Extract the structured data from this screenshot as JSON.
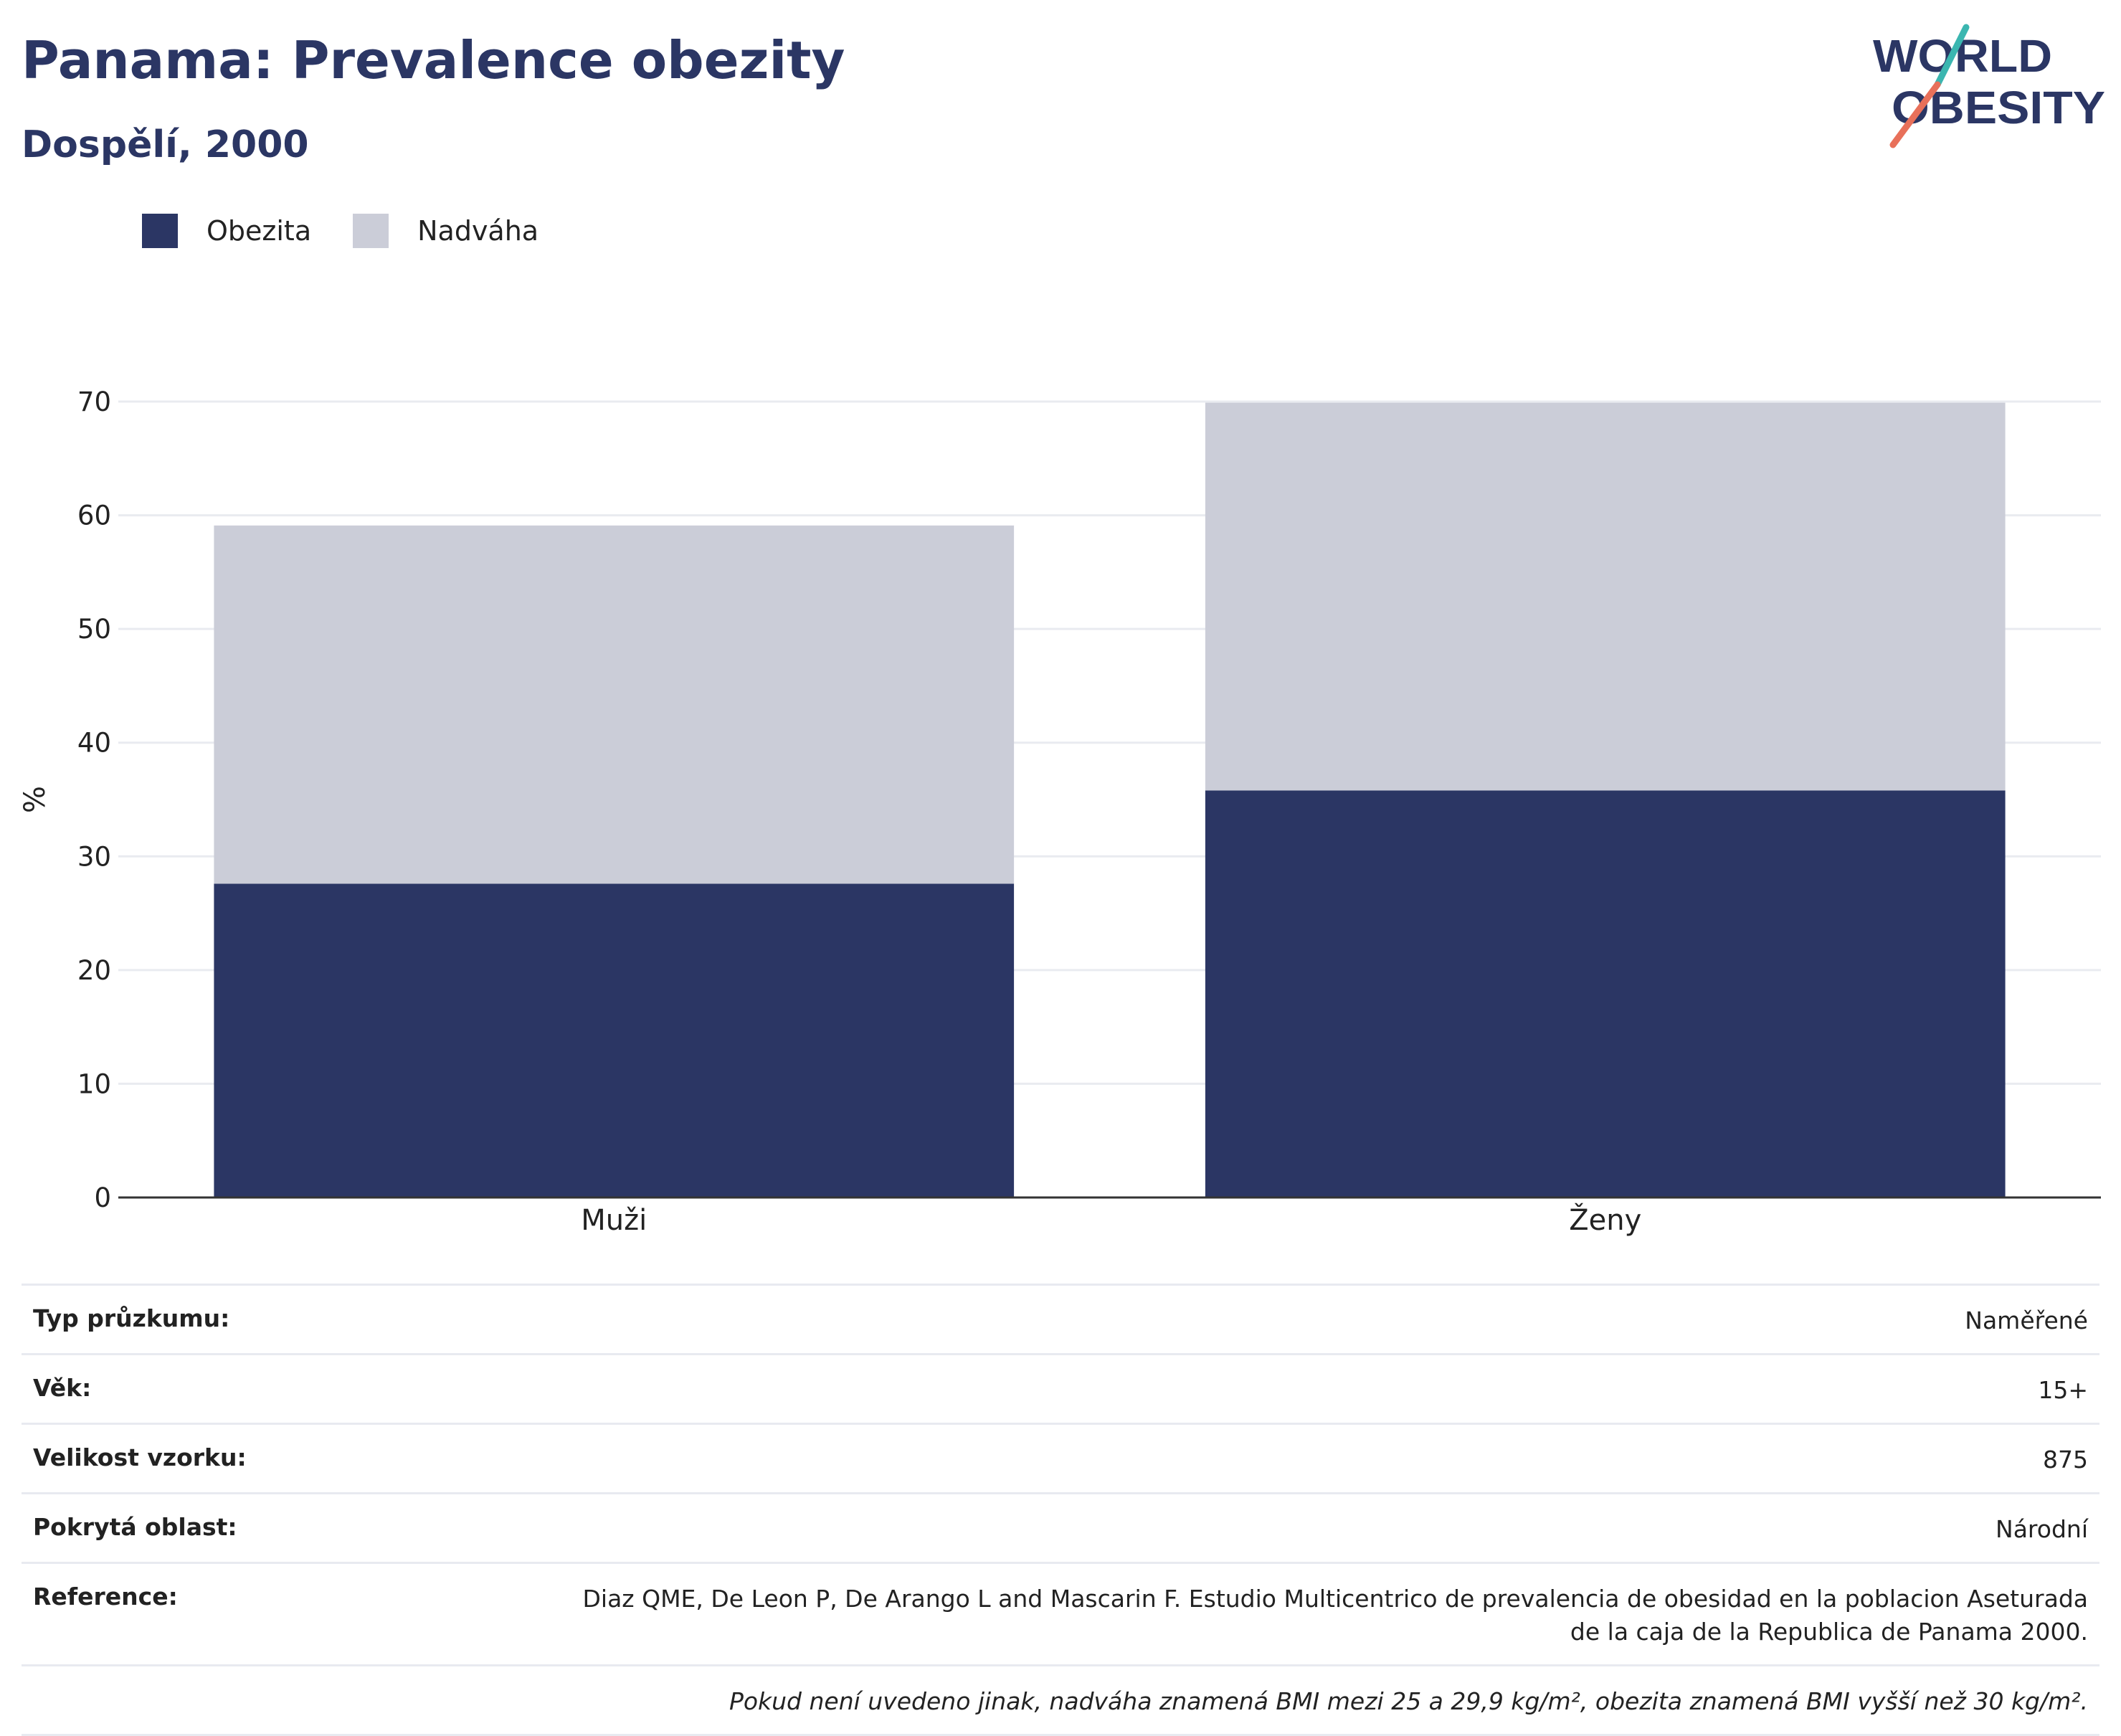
{
  "title": "Panama: Prevalence obezity",
  "subtitle": "Dospělí, 2000",
  "logo": {
    "line1": "WORLD",
    "line2": "OBESITY"
  },
  "colors": {
    "obesity": "#2b3664",
    "overweight": "#cbcdd8",
    "accent_teal": "#3bb6b0",
    "accent_coral": "#e8705a",
    "text_dark": "#2b3664"
  },
  "legend": [
    {
      "label": "Obezita",
      "color": "#2b3664"
    },
    {
      "label": "Nadváha",
      "color": "#cbcdd8"
    }
  ],
  "chart_data": {
    "type": "bar",
    "stacked": true,
    "categories": [
      "Muži",
      "Ženy"
    ],
    "series": [
      {
        "name": "Obezita",
        "values": [
          27.6,
          35.8
        ]
      },
      {
        "name": "Nadváha",
        "values": [
          31.5,
          34.1
        ]
      }
    ],
    "ylabel": "%",
    "xlabel": "",
    "ylim": [
      0,
      70
    ],
    "yticks": [
      0,
      10,
      20,
      30,
      40,
      50,
      60,
      70
    ],
    "grid": true,
    "legend_position": "top-left"
  },
  "info": {
    "rows": [
      {
        "key": "Typ průzkumu:",
        "value": "Naměřené"
      },
      {
        "key": "Věk:",
        "value": "15+"
      },
      {
        "key": "Velikost vzorku:",
        "value": "875"
      },
      {
        "key": "Pokrytá oblast:",
        "value": "Národní"
      },
      {
        "key": "Reference:",
        "value": "Diaz QME, De Leon P, De Arango L and Mascarin F. Estudio Multicentrico de prevalencia de obesidad en la poblacion Aseturada de la caja de la Republica de Panama 2000."
      }
    ],
    "note": "Pokud není uvedeno jinak, nadváha znamená BMI mezi 25 a 29,9 kg/m², obezita znamená BMI vyšší než 30 kg/m²."
  }
}
